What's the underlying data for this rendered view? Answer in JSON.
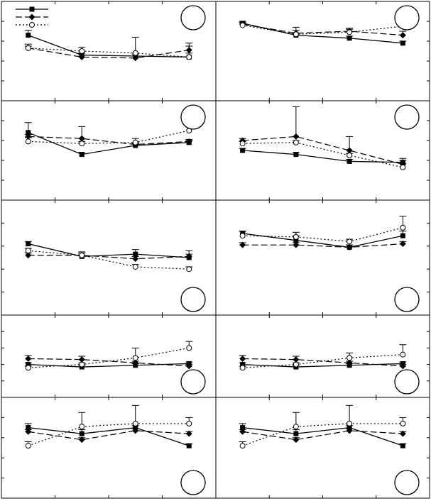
{
  "figure": {
    "rows": 5,
    "cols": 2,
    "legend_panel": 0,
    "legend_placement": "top-left",
    "colors": {
      "ink": "#000000",
      "background": "#ffffff"
    },
    "series_styles": [
      {
        "line": "solid",
        "marker": "square-filled"
      },
      {
        "line": "dashed",
        "marker": "diamond-filled"
      },
      {
        "line": "dotted",
        "marker": "circle-open"
      }
    ],
    "panel_label_placement": [
      "top-right",
      "top-right",
      "top-right",
      "top-right",
      "bottom-right",
      "bottom-right",
      "bottom-right",
      "bottom-right",
      "bottom-right",
      "bottom-right"
    ]
  },
  "chart_data": [
    {
      "type": "line",
      "x": [
        1,
        2,
        3,
        4
      ],
      "xlim": [
        0.5,
        4.5
      ],
      "ylim": [
        0,
        5
      ],
      "grid": false,
      "series": [
        {
          "values": [
            3.3,
            2.3,
            2.25,
            2.2
          ],
          "errors": [
            0.25,
            0.1,
            0.1,
            0.2
          ]
        },
        {
          "values": [
            2.65,
            2.2,
            2.15,
            2.55
          ],
          "errors": [
            0.1,
            0.1,
            0.1,
            0.2
          ]
        },
        {
          "values": [
            2.65,
            2.5,
            2.4,
            2.2
          ],
          "errors": [
            0.2,
            0.2,
            0.8,
            0.7
          ]
        }
      ]
    },
    {
      "type": "line",
      "x": [
        1,
        2,
        3,
        4
      ],
      "xlim": [
        0.5,
        4.5
      ],
      "ylim": [
        0,
        5
      ],
      "grid": false,
      "series": [
        {
          "values": [
            3.9,
            3.3,
            3.15,
            2.9
          ],
          "errors": [
            0.1,
            0.1,
            0.1,
            0.1
          ]
        },
        {
          "values": [
            3.85,
            3.4,
            3.5,
            3.3
          ],
          "errors": [
            0.1,
            0.3,
            0.15,
            0.2
          ]
        },
        {
          "values": [
            3.8,
            3.35,
            3.45,
            3.75
          ],
          "errors": [
            0.1,
            0.2,
            0.15,
            0.3
          ]
        }
      ]
    },
    {
      "type": "line",
      "x": [
        1,
        2,
        3,
        4
      ],
      "xlim": [
        0.5,
        4.5
      ],
      "ylim": [
        0,
        5
      ],
      "grid": false,
      "series": [
        {
          "values": [
            3.4,
            2.3,
            2.75,
            2.9
          ],
          "errors": [
            0.5,
            0.1,
            0.1,
            0.1
          ]
        },
        {
          "values": [
            3.2,
            3.1,
            2.8,
            2.95
          ],
          "errors": [
            0.1,
            0.6,
            0.1,
            0.1
          ]
        },
        {
          "values": [
            2.95,
            2.85,
            2.9,
            3.5
          ],
          "errors": [
            0.2,
            0.1,
            0.2,
            0.3
          ]
        }
      ]
    },
    {
      "type": "line",
      "x": [
        1,
        2,
        3,
        4
      ],
      "xlim": [
        0.5,
        4.5
      ],
      "ylim": [
        0,
        5
      ],
      "grid": false,
      "series": [
        {
          "values": [
            2.5,
            2.3,
            1.95,
            1.9
          ],
          "errors": [
            0.1,
            0.1,
            0.1,
            0.1
          ]
        },
        {
          "values": [
            3.0,
            3.2,
            2.5,
            1.8
          ],
          "errors": [
            0.1,
            1.5,
            0.7,
            0.3
          ]
        },
        {
          "values": [
            2.85,
            2.9,
            2.25,
            1.65
          ],
          "errors": [
            0.1,
            0.1,
            0.1,
            0.2
          ]
        }
      ]
    },
    {
      "type": "line",
      "x": [
        1,
        2,
        3,
        4
      ],
      "xlim": [
        0.5,
        4.5
      ],
      "ylim": [
        0,
        5
      ],
      "grid": false,
      "series": [
        {
          "values": [
            3.1,
            2.55,
            2.65,
            2.5
          ],
          "errors": [
            0.1,
            0.2,
            0.2,
            0.3
          ]
        },
        {
          "values": [
            2.6,
            2.6,
            2.45,
            2.55
          ],
          "errors": [
            0.1,
            0.1,
            0.1,
            0.1
          ]
        },
        {
          "values": [
            2.8,
            2.6,
            2.1,
            2.0
          ],
          "errors": [
            0.1,
            0.1,
            0.1,
            0.1
          ]
        }
      ]
    },
    {
      "type": "line",
      "x": [
        1,
        2,
        3,
        4
      ],
      "xlim": [
        0.5,
        4.5
      ],
      "ylim": [
        0,
        5
      ],
      "grid": false,
      "series": [
        {
          "values": [
            3.55,
            3.25,
            2.95,
            3.45
          ],
          "errors": [
            0.1,
            0.2,
            0.1,
            0.2
          ]
        },
        {
          "values": [
            3.05,
            3.05,
            2.95,
            3.1
          ],
          "errors": [
            0.1,
            0.1,
            0.1,
            0.1
          ]
        },
        {
          "values": [
            3.45,
            3.4,
            3.2,
            3.8
          ],
          "errors": [
            0.2,
            0.2,
            0.1,
            0.5
          ]
        }
      ]
    },
    {
      "type": "line",
      "x": [
        1,
        2,
        3,
        4
      ],
      "xlim": [
        0.5,
        4.5
      ],
      "ylim": [
        0,
        5
      ],
      "grid": false,
      "series": [
        {
          "values": [
            2.0,
            1.85,
            1.95,
            2.05
          ],
          "errors": [
            0.1,
            0.1,
            0.1,
            0.1
          ]
        },
        {
          "values": [
            2.35,
            2.3,
            2.1,
            1.9
          ],
          "errors": [
            0.2,
            0.2,
            0.1,
            0.1
          ]
        },
        {
          "values": [
            1.8,
            2.0,
            2.4,
            3.0
          ],
          "errors": [
            0.1,
            0.1,
            0.6,
            0.4
          ]
        }
      ]
    },
    {
      "type": "line",
      "x": [
        1,
        2,
        3,
        4
      ],
      "xlim": [
        0.5,
        4.5
      ],
      "ylim": [
        0,
        5
      ],
      "grid": false,
      "series": [
        {
          "values": [
            2.0,
            1.85,
            1.95,
            2.05
          ],
          "errors": [
            0.1,
            0.1,
            0.1,
            0.1
          ]
        },
        {
          "values": [
            2.35,
            2.3,
            2.1,
            1.9
          ],
          "errors": [
            0.2,
            0.2,
            0.1,
            0.1
          ]
        },
        {
          "values": [
            1.8,
            2.0,
            2.4,
            2.6
          ],
          "errors": [
            0.1,
            0.1,
            0.3,
            0.6
          ]
        }
      ]
    },
    {
      "type": "line",
      "x": [
        1,
        2,
        3,
        4
      ],
      "xlim": [
        0.5,
        4.5
      ],
      "ylim": [
        0,
        5
      ],
      "grid": false,
      "series": [
        {
          "values": [
            3.5,
            3.2,
            3.5,
            2.6
          ],
          "errors": [
            0.2,
            0.2,
            0.1,
            0.1
          ]
        },
        {
          "values": [
            3.3,
            2.9,
            3.35,
            3.2
          ],
          "errors": [
            0.1,
            0.1,
            0.1,
            0.1
          ]
        },
        {
          "values": [
            2.6,
            3.55,
            3.7,
            3.7
          ],
          "errors": [
            0.2,
            0.7,
            0.9,
            0.3
          ]
        }
      ]
    },
    {
      "type": "line",
      "x": [
        1,
        2,
        3,
        4
      ],
      "xlim": [
        0.5,
        4.5
      ],
      "ylim": [
        0,
        5
      ],
      "grid": false,
      "series": [
        {
          "values": [
            3.5,
            3.2,
            3.5,
            2.6
          ],
          "errors": [
            0.2,
            0.2,
            0.1,
            0.1
          ]
        },
        {
          "values": [
            3.3,
            2.9,
            3.35,
            3.2
          ],
          "errors": [
            0.1,
            0.1,
            0.1,
            0.1
          ]
        },
        {
          "values": [
            2.6,
            3.55,
            3.7,
            3.7
          ],
          "errors": [
            0.2,
            0.7,
            0.9,
            0.3
          ]
        }
      ]
    }
  ]
}
